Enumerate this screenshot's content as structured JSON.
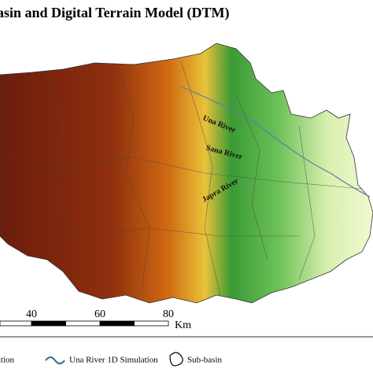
{
  "header": {
    "title": "asin and Digital Terrain Model (DTM)"
  },
  "rivers": [
    "Una River",
    "Sana River",
    "Japra River"
  ],
  "scale_bar": {
    "ticks": [
      40,
      60,
      80
    ],
    "unit": "Km"
  },
  "legend": [
    "ation",
    "Una River 1D Simulation",
    "Sub-basin"
  ]
}
